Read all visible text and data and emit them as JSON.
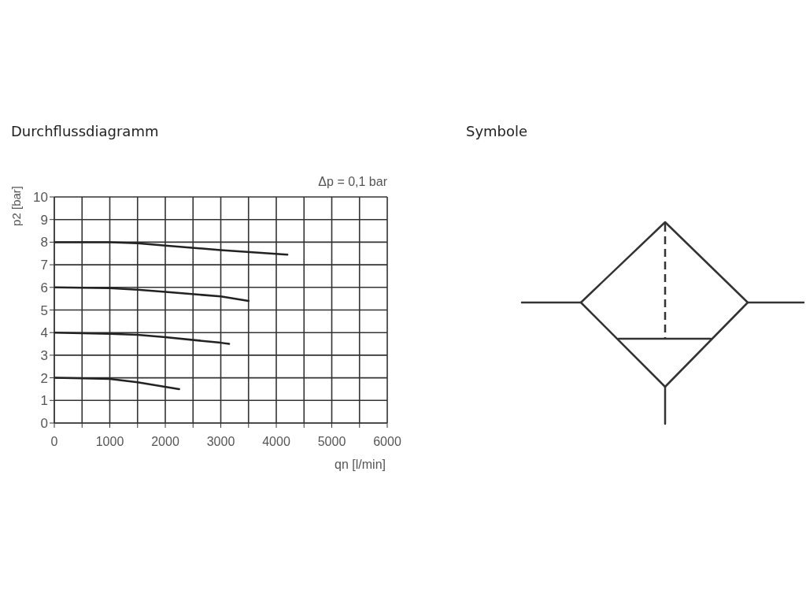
{
  "chart_data": {
    "type": "line",
    "title": "Durchflussdiagramm",
    "xlabel": "qn [l/min]",
    "ylabel": "p2 [bar]",
    "annotations": [
      "Δp = 0,1 bar",
      "Symbole"
    ],
    "series": [
      {
        "color": "#222222",
        "x": [
          0,
          1000,
          1500,
          2000,
          3000,
          4200
        ],
        "values": [
          8,
          8,
          7.95,
          7.85,
          7.65,
          7.45
        ]
      },
      {
        "color": "#222222",
        "x": [
          0,
          1000,
          1500,
          2000,
          3000,
          3500
        ],
        "values": [
          6,
          5.97,
          5.9,
          5.8,
          5.6,
          5.4
        ]
      },
      {
        "color": "#222222",
        "x": [
          0,
          1000,
          1500,
          2000,
          3000,
          3150
        ],
        "values": [
          4,
          3.95,
          3.9,
          3.8,
          3.55,
          3.5
        ]
      },
      {
        "color": "#222222",
        "x": [
          0,
          1000,
          1500,
          2250
        ],
        "values": [
          2,
          1.95,
          1.8,
          1.5
        ]
      }
    ],
    "xlim": [
      0,
      6000
    ],
    "xticks": [
      0,
      {
        "value": 500,
        "label": null
      },
      1000,
      {
        "value": 1500,
        "label": null
      },
      2000,
      {
        "value": 2500,
        "label": null
      },
      3000,
      {
        "value": 3500,
        "label": null
      },
      4000,
      {
        "value": 4500,
        "label": null
      },
      5000,
      {
        "value": 5500,
        "label": null
      },
      6000
    ],
    "ylim": [
      0,
      10
    ],
    "yticks": [
      0,
      1,
      2,
      3,
      4,
      5,
      6,
      7,
      8,
      9,
      10
    ],
    "grid": true,
    "marker": "none",
    "line_style": "solid"
  }
}
